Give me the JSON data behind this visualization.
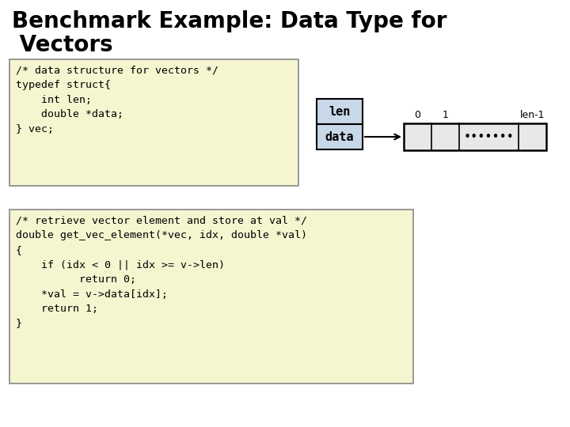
{
  "title_line1": "Benchmark Example: Data Type for",
  "title_line2": " Vectors",
  "bg_color": "#ffffff",
  "code_box1_color": "#f5f5d0",
  "code_box1_border": "#888888",
  "code_box1_text": "/* data structure for vectors */\ntypedef struct{\n    int len;\n    double *data;\n} vec;",
  "code_box2_color": "#f5f5d0",
  "code_box2_border": "#888888",
  "code_box2_text": "/* retrieve vector element and store at val */\ndouble get_vec_element(*vec, idx, double *val)\n{\n    if (idx < 0 || idx >= v->len)\n          return 0;\n    *val = v->data[idx];\n    return 1;\n}",
  "struct_box_color": "#c8d8e8",
  "struct_box_border": "#000000",
  "array_box_color": "#e8e8e8",
  "array_box_border": "#000000",
  "label_len": "len",
  "label_data": "data",
  "array_label_0": "0",
  "array_label_1": "1",
  "array_label_len1": "len-1",
  "dots": "•••••••",
  "title_fontsize": 20,
  "code_fontsize": 9.5,
  "struct_label_fontsize": 11,
  "array_label_fontsize": 9,
  "mono_font": "monospace"
}
